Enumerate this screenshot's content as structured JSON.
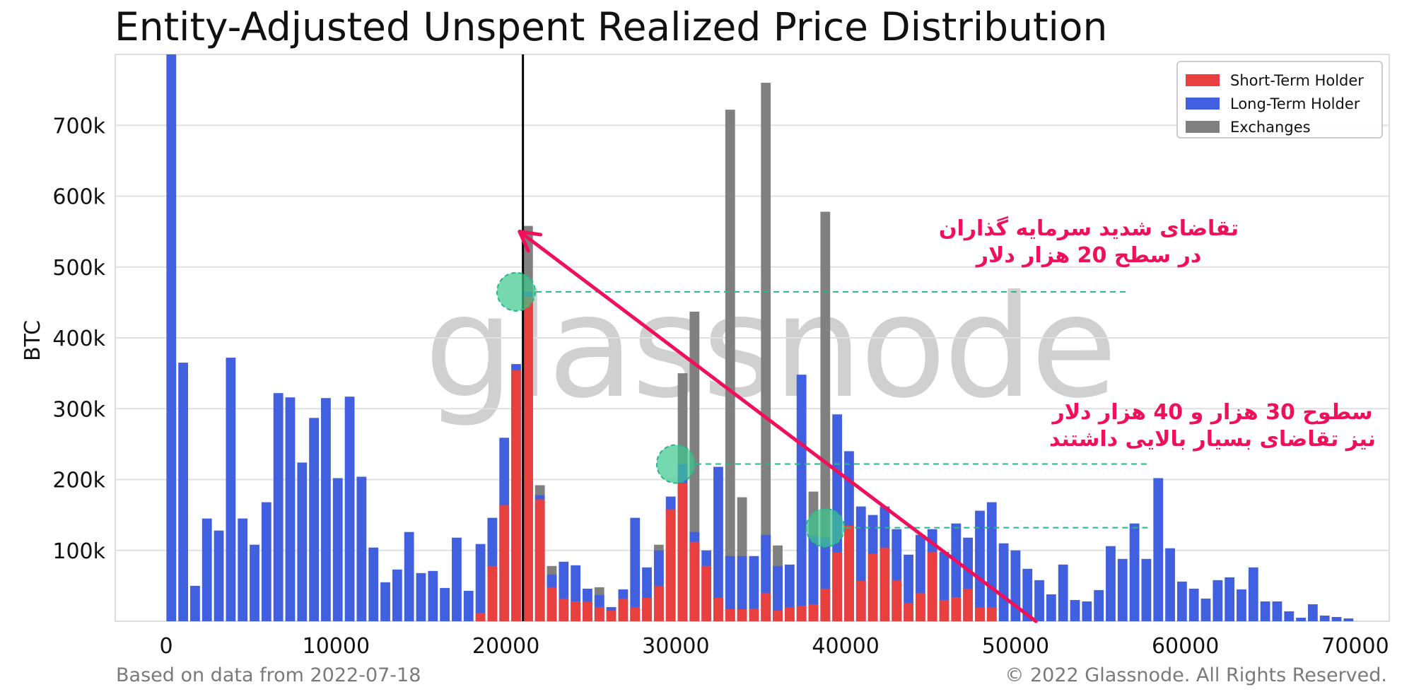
{
  "chart_data": {
    "type": "bar",
    "title": "Entity-Adjusted Unspent Realized Price Distribution",
    "xlabel": "",
    "ylabel": "BTC",
    "xlim": [
      -3000,
      72000
    ],
    "ylim": [
      0,
      800000
    ],
    "bin_width": 700,
    "x_ticks": [
      0,
      10000,
      20000,
      30000,
      40000,
      50000,
      60000,
      70000
    ],
    "y_ticks": [
      {
        "value": 100000,
        "label": "100k"
      },
      {
        "value": 200000,
        "label": "200k"
      },
      {
        "value": 300000,
        "label": "300k"
      },
      {
        "value": 400000,
        "label": "400k"
      },
      {
        "value": 500000,
        "label": "500k"
      },
      {
        "value": 600000,
        "label": "600k"
      },
      {
        "value": 700000,
        "label": "700k"
      }
    ],
    "grid": true,
    "legend_position": "top-right",
    "series": [
      {
        "name": "Short-Term Holder",
        "color": "#e8403e"
      },
      {
        "name": "Long-Term Holder",
        "color": "#4060e0"
      },
      {
        "name": "Exchanges",
        "color": "#808080"
      }
    ],
    "bins": [
      {
        "x": 300,
        "sth": 0,
        "lth": 800000,
        "ex": 0
      },
      {
        "x": 1000,
        "sth": 0,
        "lth": 365000,
        "ex": 0
      },
      {
        "x": 1700,
        "sth": 0,
        "lth": 50000,
        "ex": 0
      },
      {
        "x": 2400,
        "sth": 0,
        "lth": 145000,
        "ex": 0
      },
      {
        "x": 3100,
        "sth": 0,
        "lth": 128000,
        "ex": 0
      },
      {
        "x": 3800,
        "sth": 0,
        "lth": 372000,
        "ex": 0
      },
      {
        "x": 4500,
        "sth": 0,
        "lth": 145000,
        "ex": 0
      },
      {
        "x": 5200,
        "sth": 0,
        "lth": 108000,
        "ex": 0
      },
      {
        "x": 5900,
        "sth": 0,
        "lth": 168000,
        "ex": 0
      },
      {
        "x": 6600,
        "sth": 0,
        "lth": 322000,
        "ex": 0
      },
      {
        "x": 7300,
        "sth": 0,
        "lth": 316000,
        "ex": 0
      },
      {
        "x": 8000,
        "sth": 0,
        "lth": 224000,
        "ex": 0
      },
      {
        "x": 8700,
        "sth": 0,
        "lth": 287000,
        "ex": 0
      },
      {
        "x": 9400,
        "sth": 0,
        "lth": 315000,
        "ex": 0
      },
      {
        "x": 10100,
        "sth": 0,
        "lth": 202000,
        "ex": 0
      },
      {
        "x": 10800,
        "sth": 0,
        "lth": 317000,
        "ex": 0
      },
      {
        "x": 11500,
        "sth": 0,
        "lth": 204000,
        "ex": 0
      },
      {
        "x": 12200,
        "sth": 0,
        "lth": 104000,
        "ex": 0
      },
      {
        "x": 12900,
        "sth": 0,
        "lth": 55000,
        "ex": 0
      },
      {
        "x": 13600,
        "sth": 0,
        "lth": 73000,
        "ex": 0
      },
      {
        "x": 14300,
        "sth": 0,
        "lth": 126000,
        "ex": 0
      },
      {
        "x": 15000,
        "sth": 0,
        "lth": 68000,
        "ex": 0
      },
      {
        "x": 15700,
        "sth": 0,
        "lth": 71000,
        "ex": 0
      },
      {
        "x": 16400,
        "sth": 0,
        "lth": 47000,
        "ex": 0
      },
      {
        "x": 17100,
        "sth": 0,
        "lth": 118000,
        "ex": 0
      },
      {
        "x": 17800,
        "sth": 0,
        "lth": 43000,
        "ex": 0
      },
      {
        "x": 18500,
        "sth": 12000,
        "lth": 109000,
        "ex": 0
      },
      {
        "x": 19200,
        "sth": 78000,
        "lth": 146000,
        "ex": 0
      },
      {
        "x": 19900,
        "sth": 164000,
        "lth": 259000,
        "ex": 0
      },
      {
        "x": 20600,
        "sth": 354000,
        "lth": 363000,
        "ex": 0
      },
      {
        "x": 21300,
        "sth": 458000,
        "lth": 465000,
        "ex": 558000
      },
      {
        "x": 22000,
        "sth": 172000,
        "lth": 178000,
        "ex": 192000
      },
      {
        "x": 22700,
        "sth": 48000,
        "lth": 66000,
        "ex": 78000
      },
      {
        "x": 23400,
        "sth": 32000,
        "lth": 84000,
        "ex": 0
      },
      {
        "x": 24100,
        "sth": 28000,
        "lth": 79000,
        "ex": 0
      },
      {
        "x": 24800,
        "sth": 28000,
        "lth": 46000,
        "ex": 0
      },
      {
        "x": 25500,
        "sth": 20000,
        "lth": 37000,
        "ex": 48000
      },
      {
        "x": 26200,
        "sth": 15000,
        "lth": 20000,
        "ex": 0
      },
      {
        "x": 26900,
        "sth": 32000,
        "lth": 45000,
        "ex": 0
      },
      {
        "x": 27600,
        "sth": 20000,
        "lth": 146000,
        "ex": 0
      },
      {
        "x": 28300,
        "sth": 33000,
        "lth": 76000,
        "ex": 0
      },
      {
        "x": 29000,
        "sth": 50000,
        "lth": 100000,
        "ex": 108000
      },
      {
        "x": 29700,
        "sth": 158000,
        "lth": 176000,
        "ex": 0
      },
      {
        "x": 30400,
        "sth": 195000,
        "lth": 222000,
        "ex": 350000
      },
      {
        "x": 31100,
        "sth": 112000,
        "lth": 126000,
        "ex": 437000
      },
      {
        "x": 31800,
        "sth": 78000,
        "lth": 100000,
        "ex": 0
      },
      {
        "x": 32500,
        "sth": 33000,
        "lth": 218000,
        "ex": 0
      },
      {
        "x": 33200,
        "sth": 17000,
        "lth": 92000,
        "ex": 722000
      },
      {
        "x": 33900,
        "sth": 17000,
        "lth": 92000,
        "ex": 175000
      },
      {
        "x": 34600,
        "sth": 18000,
        "lth": 92000,
        "ex": 0
      },
      {
        "x": 35300,
        "sth": 40000,
        "lth": 122000,
        "ex": 760000
      },
      {
        "x": 36000,
        "sth": 15000,
        "lth": 78000,
        "ex": 107000
      },
      {
        "x": 36700,
        "sth": 20000,
        "lth": 80000,
        "ex": 0
      },
      {
        "x": 37400,
        "sth": 22000,
        "lth": 348000,
        "ex": 0
      },
      {
        "x": 38100,
        "sth": 24000,
        "lth": 120000,
        "ex": 183000
      },
      {
        "x": 38800,
        "sth": 46000,
        "lth": 118000,
        "ex": 578000
      },
      {
        "x": 39500,
        "sth": 97000,
        "lth": 292000,
        "ex": 0
      },
      {
        "x": 40200,
        "sth": 135000,
        "lth": 240000,
        "ex": 0
      },
      {
        "x": 40900,
        "sth": 57000,
        "lth": 162000,
        "ex": 0
      },
      {
        "x": 41600,
        "sth": 95000,
        "lth": 150000,
        "ex": 0
      },
      {
        "x": 42300,
        "sth": 104000,
        "lth": 162000,
        "ex": 0
      },
      {
        "x": 43000,
        "sth": 58000,
        "lth": 130000,
        "ex": 0
      },
      {
        "x": 43700,
        "sth": 26000,
        "lth": 94000,
        "ex": 0
      },
      {
        "x": 44400,
        "sth": 40000,
        "lth": 122000,
        "ex": 0
      },
      {
        "x": 45100,
        "sth": 98000,
        "lth": 130000,
        "ex": 0
      },
      {
        "x": 45800,
        "sth": 30000,
        "lth": 98000,
        "ex": 0
      },
      {
        "x": 46500,
        "sth": 34000,
        "lth": 138000,
        "ex": 0
      },
      {
        "x": 47200,
        "sth": 46000,
        "lth": 118000,
        "ex": 0
      },
      {
        "x": 47900,
        "sth": 20000,
        "lth": 156000,
        "ex": 0
      },
      {
        "x": 48600,
        "sth": 20000,
        "lth": 168000,
        "ex": 0
      },
      {
        "x": 49300,
        "sth": 0,
        "lth": 110000,
        "ex": 0
      },
      {
        "x": 50000,
        "sth": 0,
        "lth": 100000,
        "ex": 0
      },
      {
        "x": 50700,
        "sth": 0,
        "lth": 74000,
        "ex": 0
      },
      {
        "x": 51400,
        "sth": 0,
        "lth": 58000,
        "ex": 0
      },
      {
        "x": 52100,
        "sth": 0,
        "lth": 38000,
        "ex": 0
      },
      {
        "x": 52800,
        "sth": 0,
        "lth": 80000,
        "ex": 0
      },
      {
        "x": 53500,
        "sth": 0,
        "lth": 30000,
        "ex": 0
      },
      {
        "x": 54200,
        "sth": 0,
        "lth": 28000,
        "ex": 0
      },
      {
        "x": 54900,
        "sth": 0,
        "lth": 44000,
        "ex": 0
      },
      {
        "x": 55600,
        "sth": 0,
        "lth": 106000,
        "ex": 0
      },
      {
        "x": 56300,
        "sth": 0,
        "lth": 88000,
        "ex": 0
      },
      {
        "x": 57000,
        "sth": 0,
        "lth": 138000,
        "ex": 0
      },
      {
        "x": 57700,
        "sth": 0,
        "lth": 88000,
        "ex": 0
      },
      {
        "x": 58400,
        "sth": 0,
        "lth": 202000,
        "ex": 0
      },
      {
        "x": 59100,
        "sth": 0,
        "lth": 103000,
        "ex": 0
      },
      {
        "x": 59800,
        "sth": 0,
        "lth": 56000,
        "ex": 0
      },
      {
        "x": 60500,
        "sth": 0,
        "lth": 46000,
        "ex": 0
      },
      {
        "x": 61200,
        "sth": 0,
        "lth": 32000,
        "ex": 0
      },
      {
        "x": 61900,
        "sth": 0,
        "lth": 58000,
        "ex": 0
      },
      {
        "x": 62600,
        "sth": 0,
        "lth": 62000,
        "ex": 0
      },
      {
        "x": 63300,
        "sth": 0,
        "lth": 45000,
        "ex": 0
      },
      {
        "x": 64000,
        "sth": 0,
        "lth": 76000,
        "ex": 0
      },
      {
        "x": 64700,
        "sth": 0,
        "lth": 28000,
        "ex": 0
      },
      {
        "x": 65400,
        "sth": 0,
        "lth": 28000,
        "ex": 0
      },
      {
        "x": 66100,
        "sth": 0,
        "lth": 14000,
        "ex": 0
      },
      {
        "x": 66800,
        "sth": 0,
        "lth": 5000,
        "ex": 0
      },
      {
        "x": 67500,
        "sth": 0,
        "lth": 24000,
        "ex": 0
      },
      {
        "x": 68200,
        "sth": 0,
        "lth": 8000,
        "ex": 0
      },
      {
        "x": 68900,
        "sth": 0,
        "lth": 6000,
        "ex": 0
      },
      {
        "x": 69600,
        "sth": 0,
        "lth": 4000,
        "ex": 0
      }
    ],
    "current_price_line": {
      "x": 21000,
      "color": "#000000"
    },
    "highlight_levels": [
      {
        "x": 20600,
        "y": 465000,
        "x_end": 56500
      },
      {
        "x": 30000,
        "y": 222000,
        "x_end": 57800
      },
      {
        "x": 38800,
        "y": 132000,
        "x_end": 57800
      }
    ],
    "trend_arrow": {
      "from_x": 51200,
      "from_y": 0,
      "to_x": 20800,
      "to_y": 550000,
      "color": "#f0105a"
    },
    "annotations": [
      {
        "lines": [
          "تقاضای شدید سرمایه گذاران",
          "در سطح 20 هزار دلار"
        ]
      },
      {
        "lines": [
          "سطوح 30 هزار و 40 هزار دلار",
          "نیز تقاضای بسیار بالایی داشتند"
        ]
      }
    ]
  },
  "watermark": "glassnode",
  "footer": {
    "left": "Based on data from 2022-07-18",
    "right": "© 2022 Glassnode. All Rights Reserved."
  }
}
